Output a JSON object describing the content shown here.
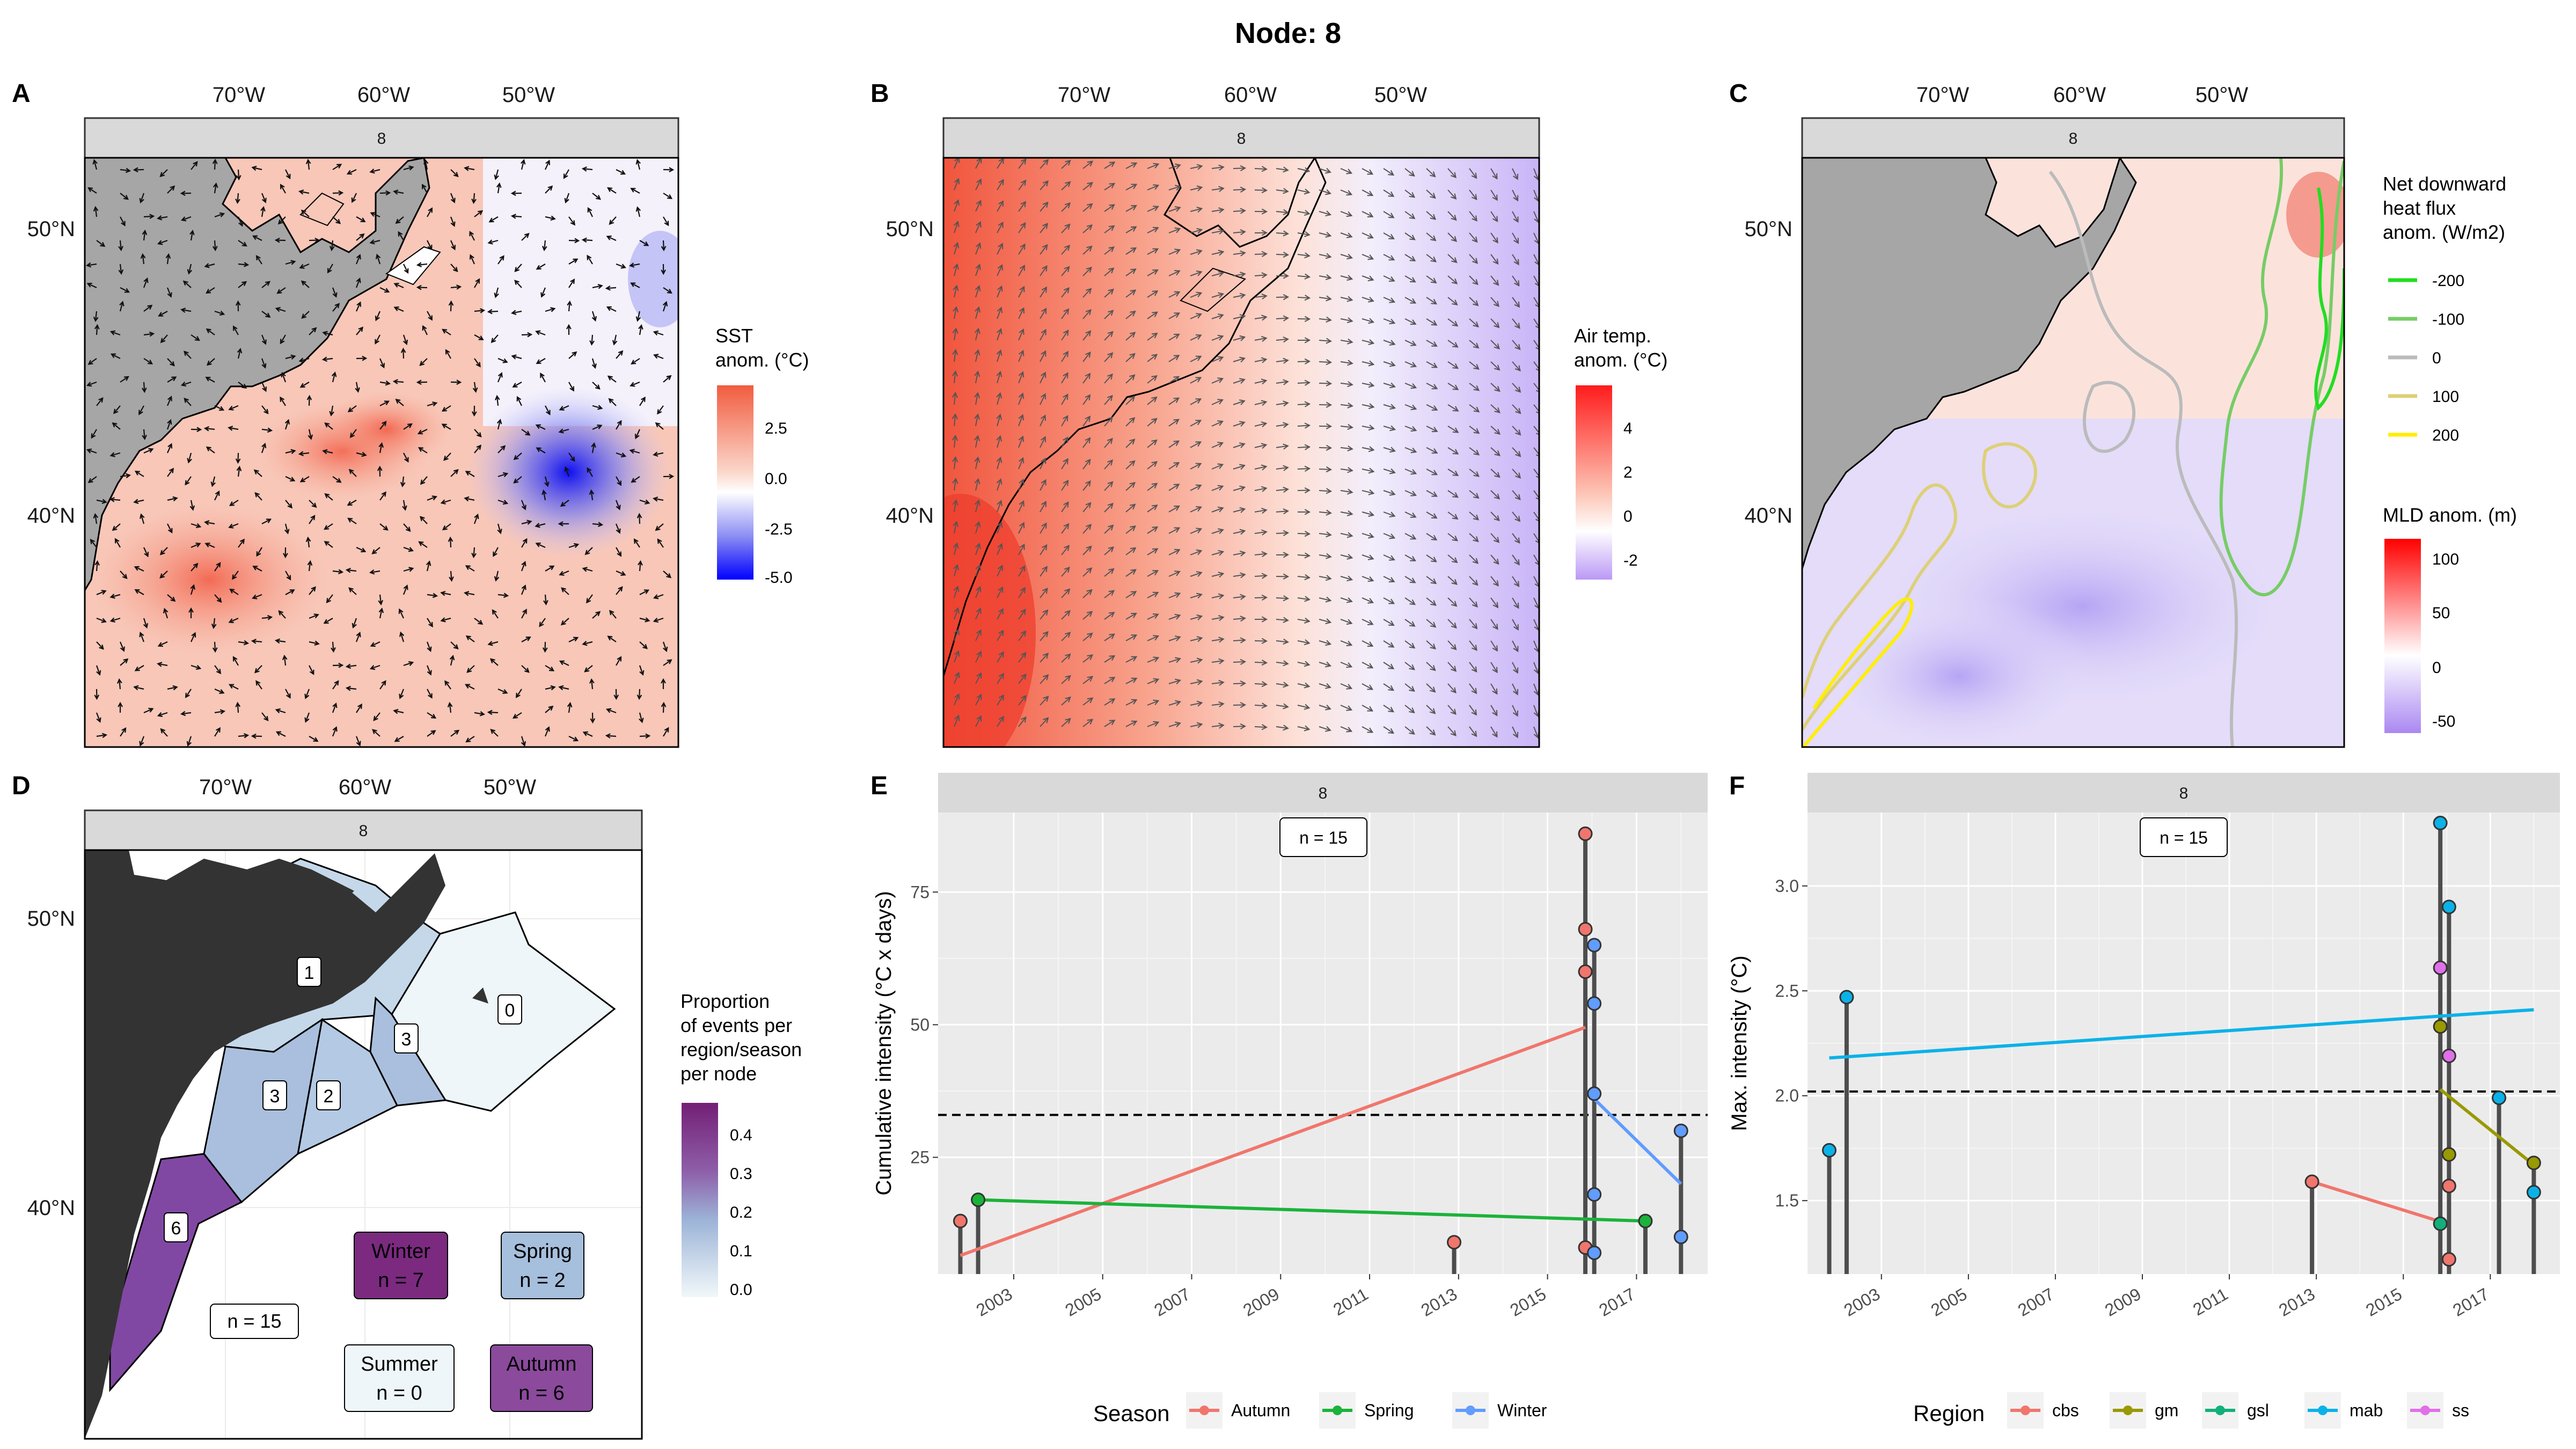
{
  "figure": {
    "title": "Node: 8",
    "strip": "8"
  },
  "panels": {
    "A": {
      "letter": "A",
      "legend_title": [
        "SST",
        "anom. (°C)"
      ],
      "legend_ticks": [
        "2.5",
        "0.0",
        "-2.5",
        "-5.0"
      ]
    },
    "B": {
      "letter": "B",
      "legend_title": [
        "Air temp.",
        "anom. (°C)"
      ],
      "legend_ticks": [
        "4",
        "2",
        "0",
        "-2"
      ]
    },
    "C": {
      "letter": "C",
      "flux_title": [
        "Net downward",
        "heat flux",
        "anom. (W/m2)"
      ],
      "flux_levels": [
        "-200",
        "-100",
        "0",
        "100",
        "200"
      ],
      "flux_colors": [
        "#22dd22",
        "#77cc66",
        "#bbbbbb",
        "#ddd077",
        "#ffee00"
      ],
      "mld_title": "MLD anom. (m)",
      "mld_ticks": [
        "100",
        "50",
        "0",
        "-50"
      ]
    },
    "D": {
      "letter": "D",
      "legend_title": [
        "Proportion",
        "of events per",
        "region/season",
        "per node"
      ],
      "legend_ticks": [
        "0.4",
        "0.3",
        "0.2",
        "0.1",
        "0.0"
      ],
      "region_labels": [
        "0",
        "1",
        "2",
        "3",
        "3",
        "6"
      ],
      "n_label": "n = 15",
      "seasons": [
        {
          "name": "Winter",
          "n": "n = 7",
          "color": "#7b2a80"
        },
        {
          "name": "Spring",
          "n": "n = 2",
          "color": "#a6bfdc"
        },
        {
          "name": "Summer",
          "n": "n = 0",
          "color": "#eef6f9"
        },
        {
          "name": "Autumn",
          "n": "n = 6",
          "color": "#8b4a9c"
        }
      ]
    },
    "E": {
      "letter": "E",
      "n_label": "n = 15"
    },
    "F": {
      "letter": "F",
      "n_label": "n = 15"
    }
  },
  "map_axes": {
    "lon_ticks": [
      "70°W",
      "60°W",
      "50°W"
    ],
    "lat_ticks": [
      "50°N",
      "40°N"
    ]
  },
  "chart_data": [
    {
      "type": "scatter",
      "panel": "E",
      "ylabel": "Cumulative intensity (°C x days)",
      "xlabel": "",
      "x_ticks": [
        "2003",
        "2005",
        "2007",
        "2009",
        "2011",
        "2013",
        "2015",
        "2017"
      ],
      "y_ticks": [
        25,
        50,
        75
      ],
      "xlim": [
        2001.3,
        2018.6
      ],
      "ylim": [
        3,
        90
      ],
      "threshold": 33,
      "legend_title": "Season",
      "series": [
        {
          "name": "Autumn",
          "color": "#f0766d",
          "points": [
            [
              2001.8,
              13
            ],
            [
              2012.9,
              9
            ],
            [
              2015.85,
              86
            ],
            [
              2015.85,
              68
            ],
            [
              2015.85,
              60
            ],
            [
              2015.85,
              8
            ]
          ],
          "trend": [
            [
              2001.8,
              6.5
            ],
            [
              2015.85,
              49.5
            ]
          ]
        },
        {
          "name": "Spring",
          "color": "#1bb33a",
          "points": [
            [
              2002.2,
              17
            ],
            [
              2017.2,
              13
            ]
          ],
          "trend": [
            [
              2002.2,
              17
            ],
            [
              2017.2,
              13
            ]
          ]
        },
        {
          "name": "Winter",
          "color": "#619cff",
          "points": [
            [
              2016.05,
              65
            ],
            [
              2016.05,
              54
            ],
            [
              2016.05,
              37
            ],
            [
              2016.05,
              18
            ],
            [
              2016.05,
              7
            ],
            [
              2018.0,
              30
            ],
            [
              2018.0,
              10
            ]
          ],
          "trend": [
            [
              2016.05,
              36
            ],
            [
              2018.0,
              20
            ]
          ]
        }
      ]
    },
    {
      "type": "scatter",
      "panel": "F",
      "ylabel": "Max. intensity (°C)",
      "xlabel": "",
      "x_ticks": [
        "2003",
        "2005",
        "2007",
        "2009",
        "2011",
        "2013",
        "2015",
        "2017"
      ],
      "y_ticks": [
        1.5,
        2.0,
        2.5,
        3.0
      ],
      "xlim": [
        2001.3,
        2018.6
      ],
      "ylim": [
        1.15,
        3.35
      ],
      "threshold": 2.02,
      "legend_title": "Region",
      "series": [
        {
          "name": "cbs",
          "color": "#f0766d",
          "points": [
            [
              2012.9,
              1.59
            ],
            [
              2016.05,
              1.57
            ],
            [
              2016.05,
              1.22
            ]
          ],
          "trend": [
            [
              2012.9,
              1.59
            ],
            [
              2015.85,
              1.4
            ]
          ]
        },
        {
          "name": "gm",
          "color": "#999900",
          "points": [
            [
              2015.85,
              2.33
            ],
            [
              2016.05,
              1.72
            ],
            [
              2018.0,
              1.68
            ]
          ],
          "trend": [
            [
              2015.85,
              2.03
            ],
            [
              2018.0,
              1.67
            ]
          ]
        },
        {
          "name": "gsl",
          "color": "#11b07a",
          "points": [
            [
              2015.85,
              1.39
            ]
          ],
          "trend": []
        },
        {
          "name": "mab",
          "color": "#0bb2e8",
          "points": [
            [
              2001.8,
              1.74
            ],
            [
              2002.2,
              2.47
            ],
            [
              2015.85,
              3.3
            ],
            [
              2016.05,
              2.9
            ],
            [
              2017.2,
              1.99
            ],
            [
              2018.0,
              1.54
            ]
          ],
          "trend": [
            [
              2001.8,
              2.18
            ],
            [
              2018.0,
              2.41
            ]
          ]
        },
        {
          "name": "ss",
          "color": "#e070e8",
          "points": [
            [
              2015.85,
              2.61
            ],
            [
              2016.05,
              2.19
            ]
          ],
          "trend": []
        }
      ]
    }
  ]
}
